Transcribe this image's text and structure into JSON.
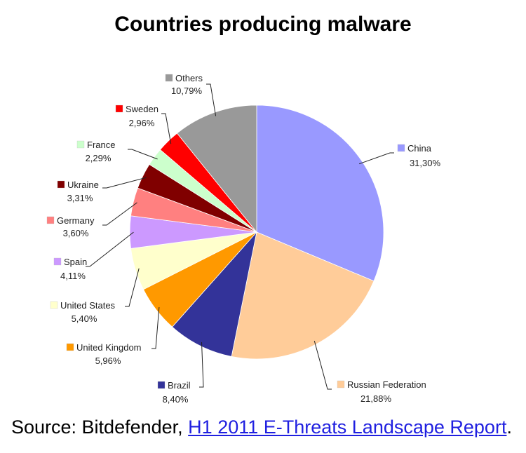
{
  "chart_data": {
    "type": "pie",
    "title": "Countries producing malware",
    "slices": [
      {
        "label": "China",
        "value": 31.3,
        "display": "31,30%",
        "color": "#9999ff"
      },
      {
        "label": "Russian Federation",
        "value": 21.88,
        "display": "21,88%",
        "color": "#ffcc99"
      },
      {
        "label": "Brazil",
        "value": 8.4,
        "display": "8,40%",
        "color": "#333399"
      },
      {
        "label": "United Kingdom",
        "value": 5.96,
        "display": "5,96%",
        "color": "#ff9900"
      },
      {
        "label": "United States",
        "value": 5.4,
        "display": "5,40%",
        "color": "#ffffcc"
      },
      {
        "label": "Spain",
        "value": 4.11,
        "display": "4,11%",
        "color": "#cc99ff"
      },
      {
        "label": "Germany",
        "value": 3.6,
        "display": "3,60%",
        "color": "#ff8080"
      },
      {
        "label": "Ukraine",
        "value": 3.31,
        "display": "3,31%",
        "color": "#800000"
      },
      {
        "label": "France",
        "value": 2.29,
        "display": "2,29%",
        "color": "#ccffcc"
      },
      {
        "label": "Sweden",
        "value": 2.96,
        "display": "2,96%",
        "color": "#ff0000"
      },
      {
        "label": "Others",
        "value": 10.79,
        "display": "10,79%",
        "color": "#999999"
      }
    ]
  },
  "source": {
    "prefix": "Source: Bitdefender, ",
    "link_text": "H1 2011 E-Threats Landscape Report",
    "suffix": "."
  }
}
